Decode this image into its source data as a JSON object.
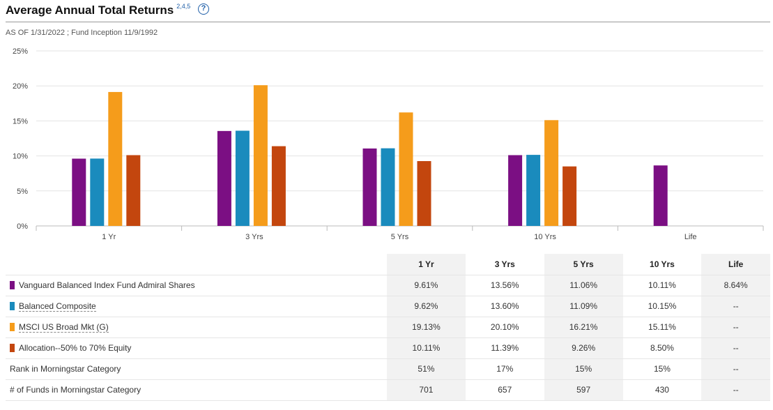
{
  "header": {
    "title": "Average Annual Total Returns",
    "footnotes": "2,4,5",
    "help_symbol": "?",
    "as_of": "AS OF 1/31/2022 ; Fund Inception 11/9/1992"
  },
  "chart_data": {
    "type": "bar",
    "categories": [
      "1 Yr",
      "3 Yrs",
      "5 Yrs",
      "10 Yrs",
      "Life"
    ],
    "ylim": [
      0,
      25
    ],
    "yticks": [
      "0%",
      "5%",
      "10%",
      "15%",
      "20%",
      "25%"
    ],
    "grid": true,
    "series": [
      {
        "name": "Vanguard Balanced Index Fund Admiral Shares",
        "color": "#7b0f83",
        "values": [
          9.61,
          13.56,
          11.06,
          10.11,
          8.64
        ]
      },
      {
        "name": "Balanced Composite",
        "color": "#1a8bbd",
        "values": [
          9.62,
          13.6,
          11.09,
          10.15,
          null
        ]
      },
      {
        "name": "MSCI US Broad Mkt (G)",
        "color": "#f59c1b",
        "values": [
          19.13,
          20.1,
          16.21,
          15.11,
          null
        ]
      },
      {
        "name": "Allocation--50% to 70% Equity",
        "color": "#c3460e",
        "values": [
          10.11,
          11.39,
          9.26,
          8.5,
          null
        ]
      }
    ]
  },
  "table": {
    "columns": [
      "1 Yr",
      "3 Yrs",
      "5 Yrs",
      "10 Yrs",
      "Life"
    ],
    "rows": [
      {
        "label": "Vanguard Balanced Index Fund Admiral Shares",
        "color": "#7b0f83",
        "link": false,
        "values": [
          "9.61%",
          "13.56%",
          "11.06%",
          "10.11%",
          "8.64%"
        ]
      },
      {
        "label": "Balanced Composite",
        "color": "#1a8bbd",
        "link": true,
        "values": [
          "9.62%",
          "13.60%",
          "11.09%",
          "10.15%",
          "--"
        ]
      },
      {
        "label": "MSCI US Broad Mkt (G)",
        "color": "#f59c1b",
        "link": true,
        "values": [
          "19.13%",
          "20.10%",
          "16.21%",
          "15.11%",
          "--"
        ]
      },
      {
        "label": "Allocation--50% to 70% Equity",
        "color": "#c3460e",
        "link": false,
        "values": [
          "10.11%",
          "11.39%",
          "9.26%",
          "8.50%",
          "--"
        ]
      },
      {
        "label": "Rank in Morningstar Category",
        "color": null,
        "link": false,
        "values": [
          "51%",
          "17%",
          "15%",
          "15%",
          "--"
        ]
      },
      {
        "label": "# of Funds in Morningstar Category",
        "color": null,
        "link": false,
        "values": [
          "701",
          "657",
          "597",
          "430",
          "--"
        ]
      }
    ]
  }
}
